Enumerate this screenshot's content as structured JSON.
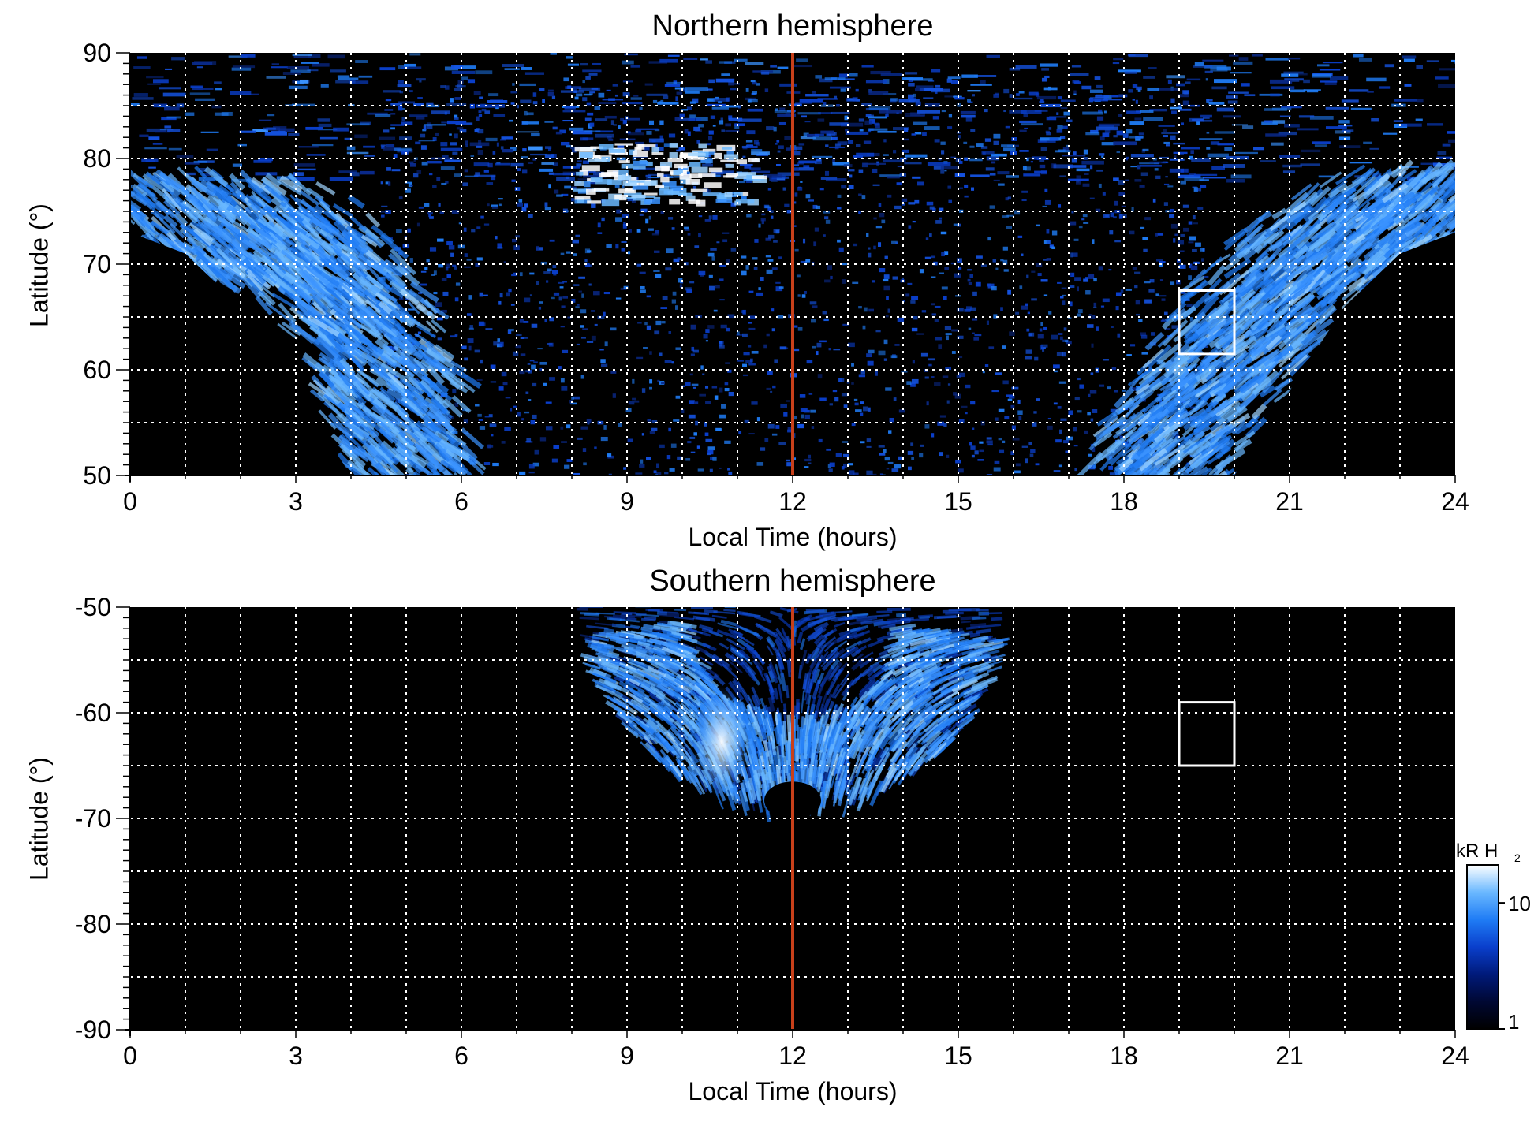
{
  "chart_data": [
    {
      "type": "heatmap",
      "title": "Northern hemisphere",
      "xlabel": "Local Time (hours)",
      "ylabel": "Latitude (°)",
      "xlim": [
        0,
        24
      ],
      "ylim": [
        50,
        90
      ],
      "xticks": [
        "0",
        "3",
        "6",
        "9",
        "12",
        "15",
        "18",
        "21",
        "24"
      ],
      "yticks": [
        "50",
        "60",
        "70",
        "80",
        "90"
      ],
      "grid": true,
      "marker_line": {
        "x": 12,
        "color": "#c8401a"
      },
      "highlight_box": {
        "x": [
          19,
          20
        ],
        "y": [
          61.5,
          67.5
        ]
      },
      "features": {
        "main_oval_dawn": [
          [
            0,
            75
          ],
          [
            2,
            74
          ],
          [
            3,
            72
          ],
          [
            4,
            66
          ],
          [
            4.6,
            58
          ],
          [
            5,
            50
          ]
        ],
        "main_oval_dusk": [
          [
            18.5,
            50
          ],
          [
            19.5,
            58
          ],
          [
            20.5,
            65
          ],
          [
            21.5,
            71
          ],
          [
            23,
            75
          ],
          [
            24,
            76
          ]
        ],
        "bright_arc": [
          [
            8,
            77
          ],
          [
            9,
            79
          ],
          [
            10,
            80
          ],
          [
            11,
            79
          ]
        ],
        "data_edge": [
          [
            0,
            73
          ],
          [
            1,
            71
          ],
          [
            2,
            66
          ],
          [
            3,
            58
          ],
          [
            4,
            50
          ],
          [
            20,
            50
          ],
          [
            21,
            58
          ],
          [
            22,
            66
          ],
          [
            23,
            71
          ],
          [
            24,
            73
          ]
        ]
      }
    },
    {
      "type": "heatmap",
      "title": "Southern hemisphere",
      "xlabel": "Local Time (hours)",
      "ylabel": "Latitude (°)",
      "xlim": [
        0,
        24
      ],
      "ylim": [
        -90,
        -50
      ],
      "xticks": [
        "0",
        "3",
        "6",
        "9",
        "12",
        "15",
        "18",
        "21",
        "24"
      ],
      "yticks": [
        "-90",
        "-80",
        "-70",
        "-60",
        "-50"
      ],
      "grid": true,
      "marker_line": {
        "x": 12,
        "color": "#c8401a"
      },
      "highlight_box": {
        "x": [
          19,
          20
        ],
        "y": [
          -65,
          -59
        ]
      },
      "features": {
        "coverage_lt": [
          8,
          16
        ],
        "coverage_max_lat": -68,
        "main_oval_lat": -62,
        "brightest": {
          "x": 11,
          "y": -62
        }
      }
    }
  ],
  "colorbar": {
    "label_main": "kR H",
    "label_sub": "2",
    "scale": "log",
    "range": [
      1,
      20
    ],
    "tick_labels": [
      "10",
      "1"
    ],
    "colors": [
      "#000000",
      "#000833",
      "#001a7a",
      "#0a3fcc",
      "#1f7cf5",
      "#6ab8ff",
      "#ffffff"
    ]
  },
  "colors": {
    "grid": "#ffffff",
    "box": "#ffffff",
    "background": "#000000"
  }
}
